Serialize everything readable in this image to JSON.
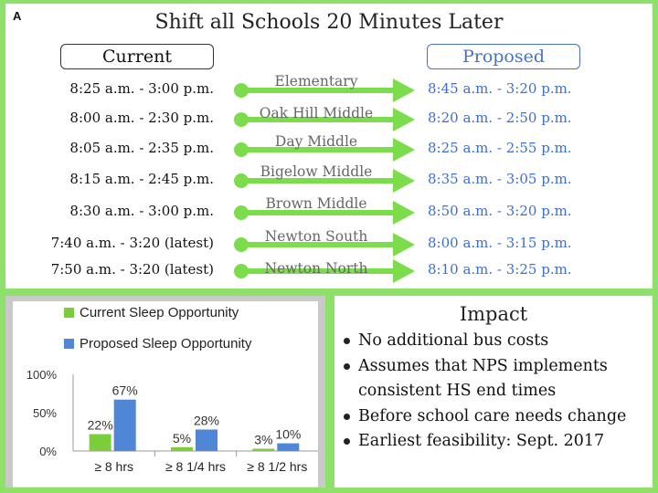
{
  "panel_letter": "A",
  "title": "Shift all Schools 20 Minutes Later",
  "headers": {
    "current": "Current",
    "proposed": "Proposed"
  },
  "schedule": [
    {
      "school": "Elementary",
      "current": "8:25 a.m. - 3:00 p.m.",
      "proposed": "8:45 a.m. - 3:20 p.m."
    },
    {
      "school": "Oak Hill Middle",
      "current": "8:00 a.m. - 2:30 p.m.",
      "proposed": "8:20 a.m. - 2:50 p.m."
    },
    {
      "school": "Day  Middle",
      "current": "8:05 a.m. - 2:35 p.m.",
      "proposed": "8:25 a.m. - 2:55 p.m."
    },
    {
      "school": "Bigelow Middle",
      "current": "8:15 a.m. - 2:45 p.m.",
      "proposed": "8:35 a.m. - 3:05 p.m."
    },
    {
      "school": "Brown Middle",
      "current": "8:30 a.m. - 3:00 p.m.",
      "proposed": "8:50 a.m. - 3:20 p.m."
    },
    {
      "school": "Newton South",
      "current": "7:40 a.m. - 3:20 (latest)",
      "proposed": "8:00 a.m. - 3:15 p.m."
    },
    {
      "school": "Newton North",
      "current": "7:50 a.m. - 3:20 (latest)",
      "proposed": "8:10 a.m. - 3:25 p.m."
    }
  ],
  "colors": {
    "arrow": "#7ddc4c",
    "current_bar": "#7ccd3c",
    "proposed_bar": "#4f86d6",
    "proposed_text": "#3b6fd0",
    "background": "#8ee06a"
  },
  "impact": {
    "title": "Impact",
    "items": [
      "No additional bus costs",
      "Assumes that NPS implements consistent HS end times",
      "Before school care needs change",
      "Earliest feasibility: Sept. 2017"
    ]
  },
  "chart_data": {
    "type": "bar",
    "categories": [
      "≥ 8 hrs",
      "≥ 8 1/4 hrs",
      "≥ 8 1/2 hrs"
    ],
    "series": [
      {
        "name": "Current Sleep Opportunity",
        "values": [
          22,
          5,
          3
        ],
        "labels": [
          "22%",
          "5%",
          "3%"
        ]
      },
      {
        "name": "Proposed Sleep Opportunity",
        "values": [
          67,
          28,
          10
        ],
        "labels": [
          "67%",
          "28%",
          "10%"
        ]
      }
    ],
    "ylim": [
      0,
      100
    ],
    "yticks": [
      0,
      50,
      100
    ],
    "ytick_labels": [
      "0%",
      "50%",
      "100%"
    ],
    "legend_position": "top-left",
    "grid": false
  }
}
